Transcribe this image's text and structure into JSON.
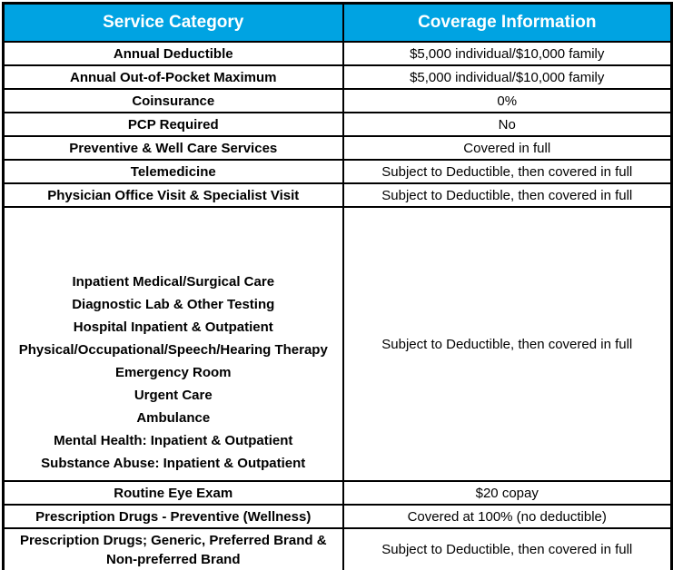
{
  "colors": {
    "header_bg": "#00a3e2",
    "header_text": "#ffffff",
    "border": "#000000",
    "body_bg": "#ffffff",
    "body_text": "#000000"
  },
  "table": {
    "header": {
      "service": "Service Category",
      "coverage": "Coverage Information"
    },
    "rows": [
      {
        "service": "Annual Deductible",
        "coverage": "$5,000 individual/$10,000 family"
      },
      {
        "service": "Annual Out-of-Pocket Maximum",
        "coverage": "$5,000 individual/$10,000 family"
      },
      {
        "service": "Coinsurance",
        "coverage": "0%"
      },
      {
        "service": "PCP Required",
        "coverage": "No"
      },
      {
        "service": "Preventive & Well Care Services",
        "coverage": "Covered in full"
      },
      {
        "service": "Telemedicine",
        "coverage": "Subject to Deductible, then covered in full"
      },
      {
        "service": "Physician Office Visit & Specialist Visit",
        "coverage": "Subject to Deductible, then covered in full"
      }
    ],
    "service_group": {
      "items": [
        "Inpatient Medical/Surgical Care",
        "Diagnostic Lab & Other Testing",
        "Hospital Inpatient & Outpatient",
        "Physical/Occupational/Speech/Hearing Therapy",
        "Emergency Room",
        "Urgent Care",
        "Ambulance",
        "Mental Health: Inpatient & Outpatient",
        "Substance Abuse: Inpatient & Outpatient"
      ],
      "coverage": "Subject to Deductible, then covered in full"
    },
    "bottom_rows": [
      {
        "service": "Routine Eye Exam",
        "coverage": "$20 copay"
      },
      {
        "service": "Prescription Drugs - Preventive (Wellness)",
        "coverage": "Covered at 100% (no deductible)"
      },
      {
        "service": "Prescription Drugs; Generic, Preferred Brand & Non-preferred Brand",
        "coverage": "Subject to Deductible, then covered in full"
      }
    ]
  }
}
